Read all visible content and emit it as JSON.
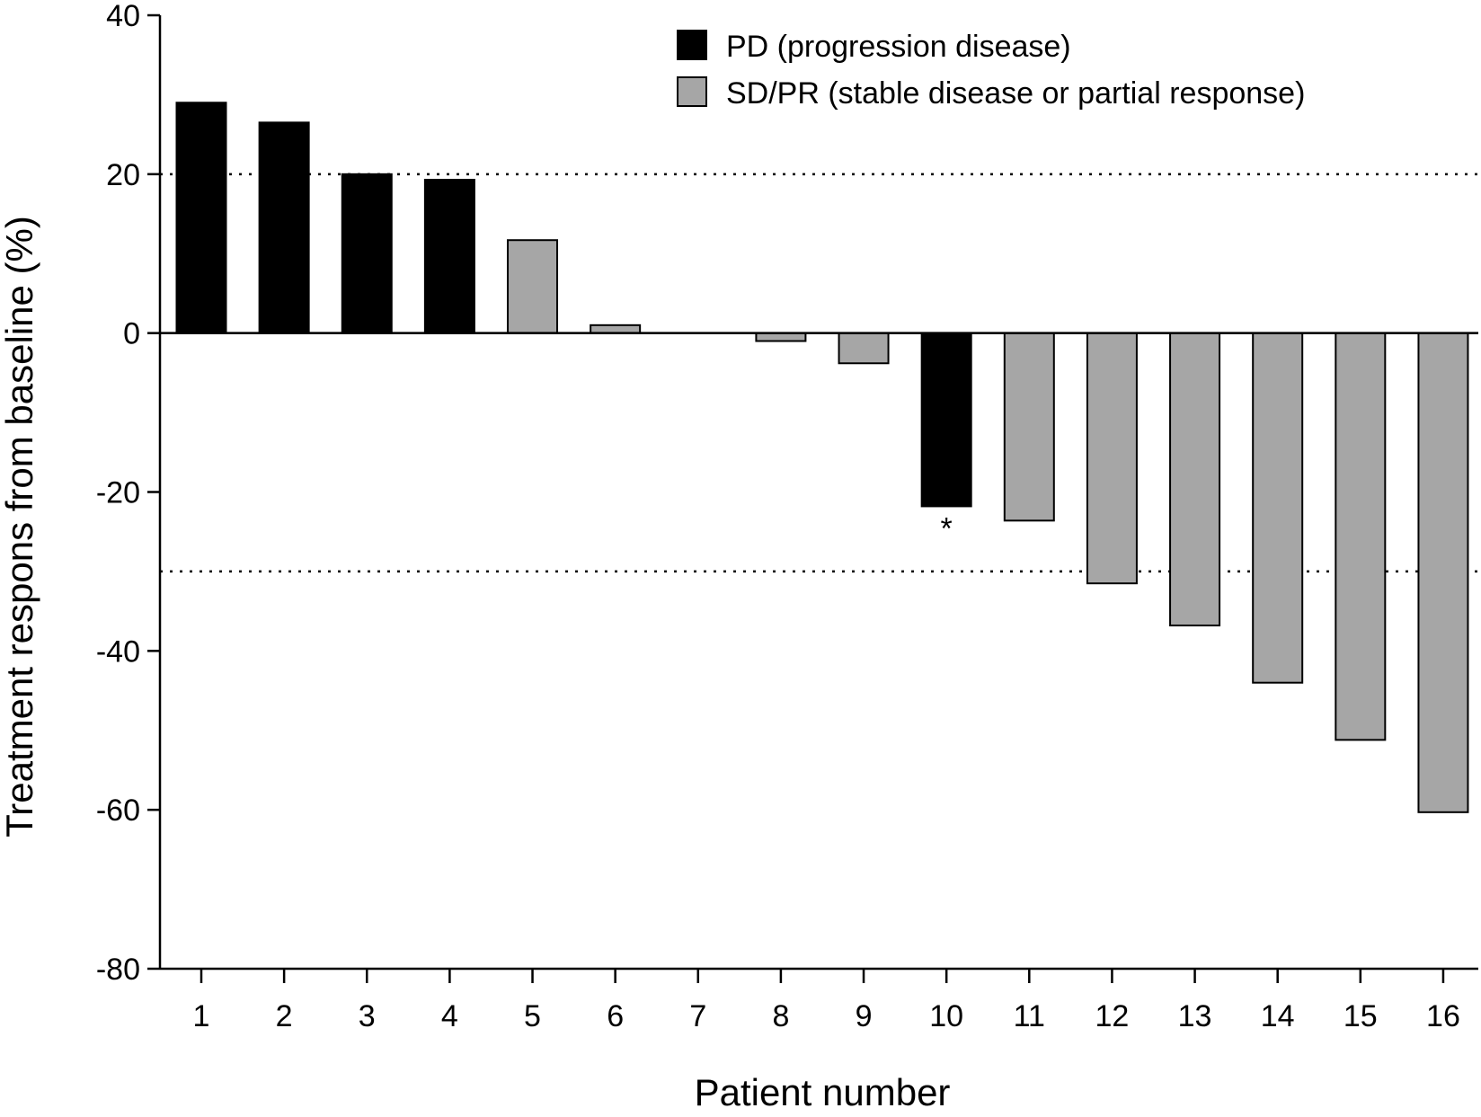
{
  "chart_data": {
    "type": "bar",
    "title": "",
    "xlabel": "Patient number",
    "ylabel": "Treatment respons from baseline (%)",
    "ylim": [
      -80,
      40
    ],
    "yticks": [
      40,
      20,
      0,
      -20,
      -40,
      -60,
      -80
    ],
    "categories": [
      "1",
      "2",
      "3",
      "4",
      "5",
      "6",
      "7",
      "8",
      "9",
      "10",
      "11",
      "12",
      "13",
      "14",
      "15",
      "16"
    ],
    "values": [
      29,
      26.5,
      20,
      19.3,
      11.7,
      1,
      0,
      -1,
      -3.8,
      -21.8,
      -23.6,
      -31.5,
      -36.8,
      -44,
      -51.2,
      -60.3
    ],
    "groups": [
      "PD",
      "PD",
      "PD",
      "PD",
      "SD/PR",
      "SD/PR",
      "SD/PR",
      "SD/PR",
      "SD/PR",
      "PD",
      "SD/PR",
      "SD/PR",
      "SD/PR",
      "SD/PR",
      "SD/PR",
      "SD/PR"
    ],
    "legend": [
      {
        "key": "PD",
        "label": "PD (progression disease)",
        "color": "#000000"
      },
      {
        "key": "SD/PR",
        "label": "SD/PR (stable disease or partial response)",
        "color": "#a6a6a6"
      }
    ],
    "legend_position": "top-right",
    "reference_lines": [
      20,
      -30
    ],
    "annotations": [
      {
        "category": "10",
        "text": "*"
      }
    ],
    "grid": false
  }
}
